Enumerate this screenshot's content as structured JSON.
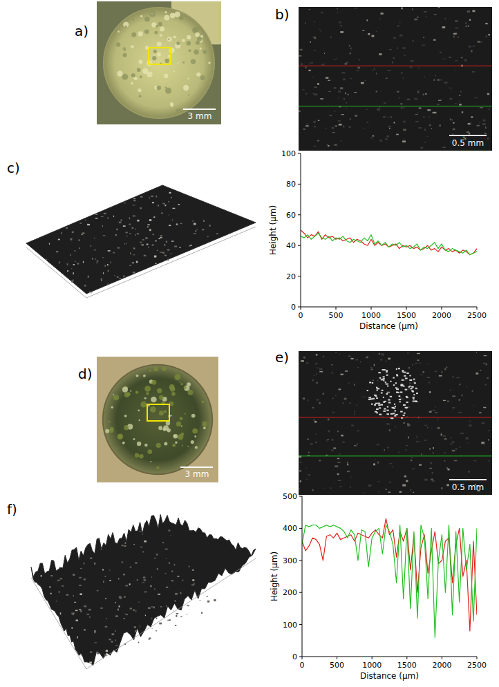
{
  "panels": {
    "labels": [
      "a)",
      "b)",
      "c)",
      "d)",
      "e)",
      "f)"
    ],
    "scale_bars": {
      "a": "3 mm",
      "b": "0.5 mm",
      "d": "3 mm",
      "e": "0.5 mm"
    }
  },
  "chart_data": [
    {
      "type": "line",
      "x_label": "Distance (μm)",
      "y_label": "Height (μm)",
      "x": [
        0,
        50,
        100,
        150,
        200,
        250,
        300,
        350,
        400,
        450,
        500,
        550,
        600,
        650,
        700,
        750,
        800,
        850,
        900,
        950,
        1000,
        1050,
        1100,
        1150,
        1200,
        1250,
        1300,
        1350,
        1400,
        1450,
        1500,
        1550,
        1600,
        1650,
        1700,
        1750,
        1800,
        1850,
        1900,
        1950,
        2000,
        2050,
        2100,
        2150,
        2200,
        2250,
        2300,
        2350,
        2400,
        2450,
        2500
      ],
      "xlim": [
        0,
        2500
      ],
      "xticks": [
        0,
        500,
        1000,
        1500,
        2000,
        2500
      ],
      "ylim": [
        0,
        100
      ],
      "yticks": [
        0,
        20,
        40,
        60,
        80,
        100
      ],
      "series": [
        {
          "color": "#e3201b",
          "values": [
            50,
            48,
            45,
            47,
            46,
            49,
            44,
            47,
            45,
            46,
            44,
            45,
            43,
            44,
            45,
            42,
            44,
            43,
            41,
            40,
            44,
            40,
            42,
            40,
            41,
            39,
            40,
            41,
            38,
            40,
            39,
            40,
            38,
            39,
            37,
            38,
            40,
            37,
            38,
            36,
            39,
            37,
            38,
            36,
            37,
            35,
            37,
            36,
            34,
            35,
            38
          ]
        },
        {
          "color": "#22c022",
          "values": [
            46,
            45,
            47,
            44,
            46,
            48,
            45,
            44,
            46,
            43,
            45,
            44,
            46,
            43,
            42,
            44,
            43,
            42,
            45,
            43,
            47,
            41,
            43,
            40,
            42,
            39,
            41,
            40,
            42,
            39,
            40,
            38,
            39,
            41,
            37,
            39,
            38,
            40,
            42,
            38,
            41,
            37,
            36,
            38,
            37,
            36,
            35,
            37,
            34,
            35,
            36
          ]
        }
      ]
    },
    {
      "type": "line",
      "x_label": "Distance (μm)",
      "y_label": "Height (μm)",
      "x": [
        0,
        50,
        100,
        150,
        200,
        250,
        300,
        350,
        400,
        450,
        500,
        550,
        600,
        650,
        700,
        750,
        800,
        850,
        900,
        950,
        1000,
        1050,
        1100,
        1150,
        1200,
        1250,
        1300,
        1350,
        1400,
        1450,
        1500,
        1550,
        1600,
        1650,
        1700,
        1750,
        1800,
        1850,
        1900,
        1950,
        2000,
        2050,
        2100,
        2150,
        2200,
        2250,
        2300,
        2350,
        2400,
        2450,
        2500
      ],
      "xlim": [
        0,
        2500
      ],
      "xticks": [
        0,
        500,
        1000,
        1500,
        2000,
        2500
      ],
      "ylim": [
        0,
        500
      ],
      "yticks": [
        0,
        100,
        200,
        300,
        400,
        500
      ],
      "series": [
        {
          "color": "#e3201b",
          "values": [
            360,
            330,
            345,
            370,
            365,
            350,
            300,
            375,
            380,
            370,
            385,
            365,
            370,
            375,
            380,
            360,
            385,
            380,
            375,
            370,
            385,
            395,
            380,
            370,
            430,
            380,
            395,
            310,
            390,
            360,
            400,
            270,
            380,
            200,
            340,
            380,
            260,
            330,
            390,
            290,
            300,
            360,
            370,
            230,
            350,
            400,
            250,
            300,
            80,
            360,
            130
          ]
        },
        {
          "color": "#22c022",
          "values": [
            350,
            410,
            405,
            410,
            410,
            400,
            405,
            410,
            405,
            410,
            405,
            400,
            390,
            370,
            395,
            380,
            300,
            395,
            390,
            280,
            370,
            390,
            400,
            320,
            410,
            390,
            350,
            230,
            410,
            180,
            400,
            150,
            390,
            120,
            410,
            370,
            180,
            400,
            60,
            300,
            380,
            200,
            410,
            130,
            390,
            170,
            400,
            270,
            350,
            110,
            400
          ]
        }
      ]
    }
  ]
}
